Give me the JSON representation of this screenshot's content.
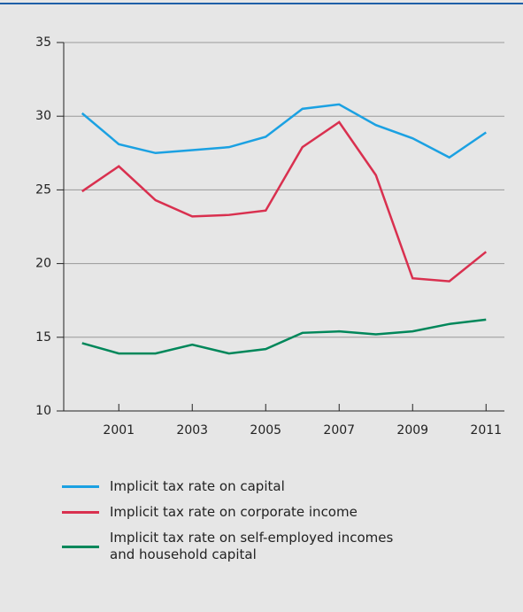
{
  "chart_data": {
    "type": "line",
    "x": [
      2000,
      2001,
      2002,
      2003,
      2004,
      2005,
      2006,
      2007,
      2008,
      2009,
      2010,
      2011
    ],
    "series": [
      {
        "name": "Implicit tax rate on capital",
        "color": "#1ba1e2",
        "values": [
          30.2,
          28.1,
          27.5,
          27.7,
          27.9,
          28.6,
          30.5,
          30.8,
          29.4,
          28.5,
          27.2,
          28.9
        ]
      },
      {
        "name": "Implicit tax rate on corporate income",
        "color": "#d9304f",
        "values": [
          24.9,
          26.6,
          24.3,
          23.2,
          23.3,
          23.6,
          27.9,
          29.6,
          26.0,
          19.0,
          18.8,
          20.8
        ]
      },
      {
        "name": "Implicit tax rate on self-employed incomes and household capital",
        "color": "#00875a",
        "values": [
          14.6,
          13.9,
          13.9,
          14.5,
          13.9,
          14.2,
          15.3,
          15.4,
          15.2,
          15.4,
          15.9,
          16.2
        ]
      }
    ],
    "xlim": [
      1999.5,
      2011.5
    ],
    "xticks": [
      2001,
      2003,
      2005,
      2007,
      2009,
      2011
    ],
    "ylim": [
      10,
      35
    ],
    "yticks": [
      10,
      15,
      20,
      25,
      30,
      35
    ],
    "grid": true
  }
}
